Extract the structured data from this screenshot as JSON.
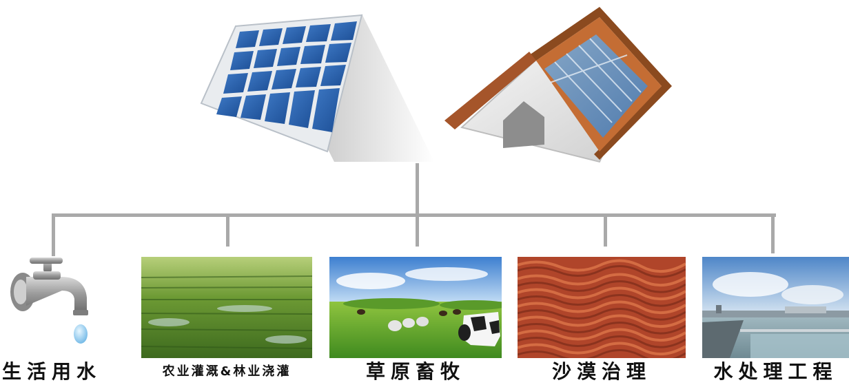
{
  "branches": [
    {
      "id": "domestic",
      "label": "生活用水",
      "icon": "faucet-icon"
    },
    {
      "id": "agriculture",
      "label": "农业灌溉&林业浇灌",
      "icon": "rice-field-image"
    },
    {
      "id": "grassland",
      "label": "草原畜牧",
      "icon": "pasture-image"
    },
    {
      "id": "desert",
      "label": "沙漠治理",
      "icon": "desert-dunes-image"
    },
    {
      "id": "water-treatment",
      "label": "水处理工程",
      "icon": "treatment-plant-image"
    }
  ],
  "colors": {
    "connector": "#a9a9a9",
    "panel_blue": "#2f5f9e",
    "roof": "#b8652e",
    "label": "#111111"
  }
}
